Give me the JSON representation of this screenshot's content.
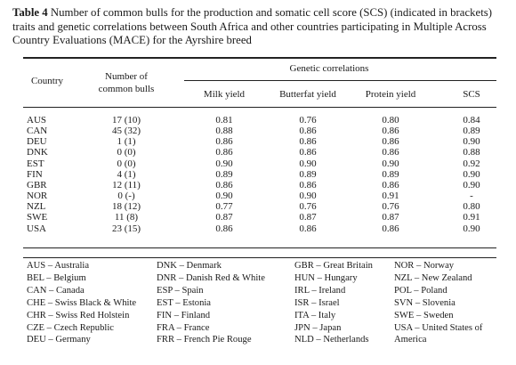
{
  "caption": {
    "label": "Table 4",
    "text": " Number of common bulls for the production and somatic cell score (SCS) (indicated in brackets) traits and genetic correlations between South Africa and other countries participating in Multiple Across Country Evaluations (MACE) for the Ayrshire breed"
  },
  "table": {
    "headers": {
      "country": "Country",
      "bulls": "Number of common bulls",
      "group": "Genetic correlations",
      "milk": "Milk yield",
      "butterfat": "Butterfat yield",
      "protein": "Protein yield",
      "scs": "SCS"
    },
    "rows": [
      {
        "country": "AUS",
        "bulls": "17 (10)",
        "milk": "0.81",
        "butterfat": "0.76",
        "protein": "0.80",
        "scs": "0.84"
      },
      {
        "country": "CAN",
        "bulls": "45 (32)",
        "milk": "0.88",
        "butterfat": "0.86",
        "protein": "0.86",
        "scs": "0.89"
      },
      {
        "country": "DEU",
        "bulls": "1 (1)",
        "milk": "0.86",
        "butterfat": "0.86",
        "protein": "0.86",
        "scs": "0.90"
      },
      {
        "country": "DNK",
        "bulls": "0 (0)",
        "milk": "0.86",
        "butterfat": "0.86",
        "protein": "0.86",
        "scs": "0.88"
      },
      {
        "country": "EST",
        "bulls": "0 (0)",
        "milk": "0.90",
        "butterfat": "0.90",
        "protein": "0.90",
        "scs": "0.92"
      },
      {
        "country": "FIN",
        "bulls": "4 (1)",
        "milk": "0.89",
        "butterfat": "0.89",
        "protein": "0.89",
        "scs": "0.90"
      },
      {
        "country": "GBR",
        "bulls": "12 (11)",
        "milk": "0.86",
        "butterfat": "0.86",
        "protein": "0.86",
        "scs": "0.90"
      },
      {
        "country": "NOR",
        "bulls": "0 (-)",
        "milk": "0.90",
        "butterfat": "0.90",
        "protein": "0.91",
        "scs": "-"
      },
      {
        "country": "NZL",
        "bulls": "18 (12)",
        "milk": "0.77",
        "butterfat": "0.76",
        "protein": "0.76",
        "scs": "0.80"
      },
      {
        "country": "SWE",
        "bulls": "11 (8)",
        "milk": "0.87",
        "butterfat": "0.87",
        "protein": "0.87",
        "scs": "0.91"
      },
      {
        "country": "USA",
        "bulls": "23 (15)",
        "milk": "0.86",
        "butterfat": "0.86",
        "protein": "0.86",
        "scs": "0.90"
      }
    ]
  },
  "abbreviations": [
    [
      "AUS – Australia",
      "BEL – Belgium",
      "CAN – Canada",
      "CHE – Swiss Black & White",
      "CHR – Swiss Red Holstein",
      "CZE – Czech Republic",
      "DEU – Germany"
    ],
    [
      "DNK – Denmark",
      "DNR – Danish Red & White",
      "ESP – Spain",
      "EST – Estonia",
      "FIN – Finland",
      "FRA – France",
      "FRR – French Pie Rouge"
    ],
    [
      "GBR – Great Britain",
      "HUN – Hungary",
      "IRL – Ireland",
      "ISR – Israel",
      "ITA – Italy",
      "JPN – Japan",
      "NLD – Netherlands"
    ],
    [
      "NOR – Norway",
      "NZL – New Zealand",
      "POL – Poland",
      "SVN – Slovenia",
      "SWE – Sweden",
      "USA – United States of America"
    ]
  ]
}
